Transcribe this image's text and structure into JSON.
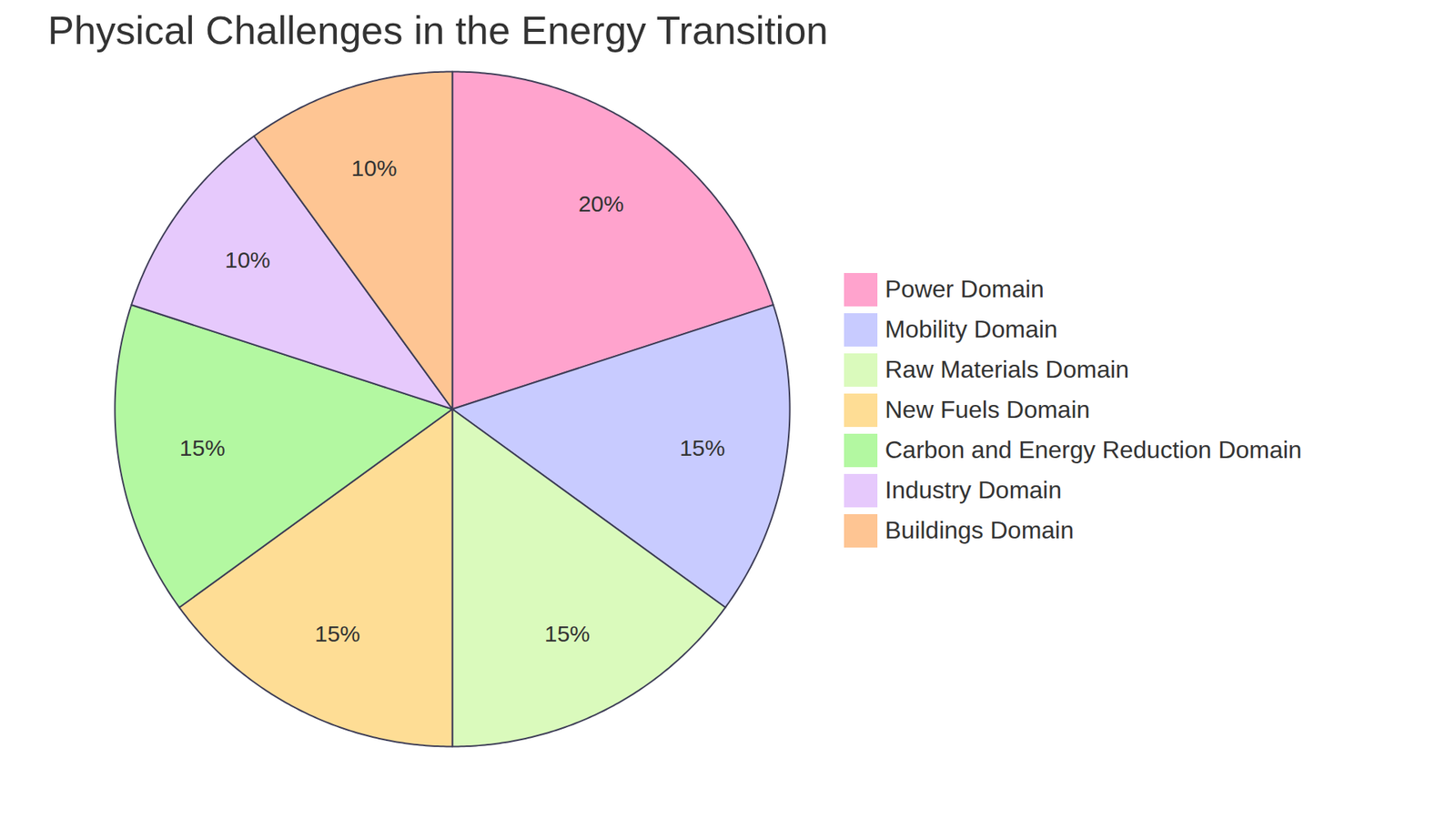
{
  "chart_data": {
    "type": "pie",
    "title": "Physical Challenges in the Energy Transition",
    "categories": [
      "Power Domain",
      "Mobility Domain",
      "Raw Materials Domain",
      "New Fuels Domain",
      "Carbon and Energy Reduction Domain",
      "Industry Domain",
      "Buildings Domain"
    ],
    "values": [
      20,
      15,
      15,
      15,
      15,
      10,
      10
    ],
    "value_labels": [
      "20%",
      "15%",
      "15%",
      "15%",
      "15%",
      "10%",
      "10%"
    ],
    "colors": [
      "#ffa3cd",
      "#c8cbff",
      "#dafabc",
      "#fedd95",
      "#b3f8a1",
      "#e6c9fc",
      "#fec593"
    ],
    "data_labels": true,
    "legend": "right"
  }
}
